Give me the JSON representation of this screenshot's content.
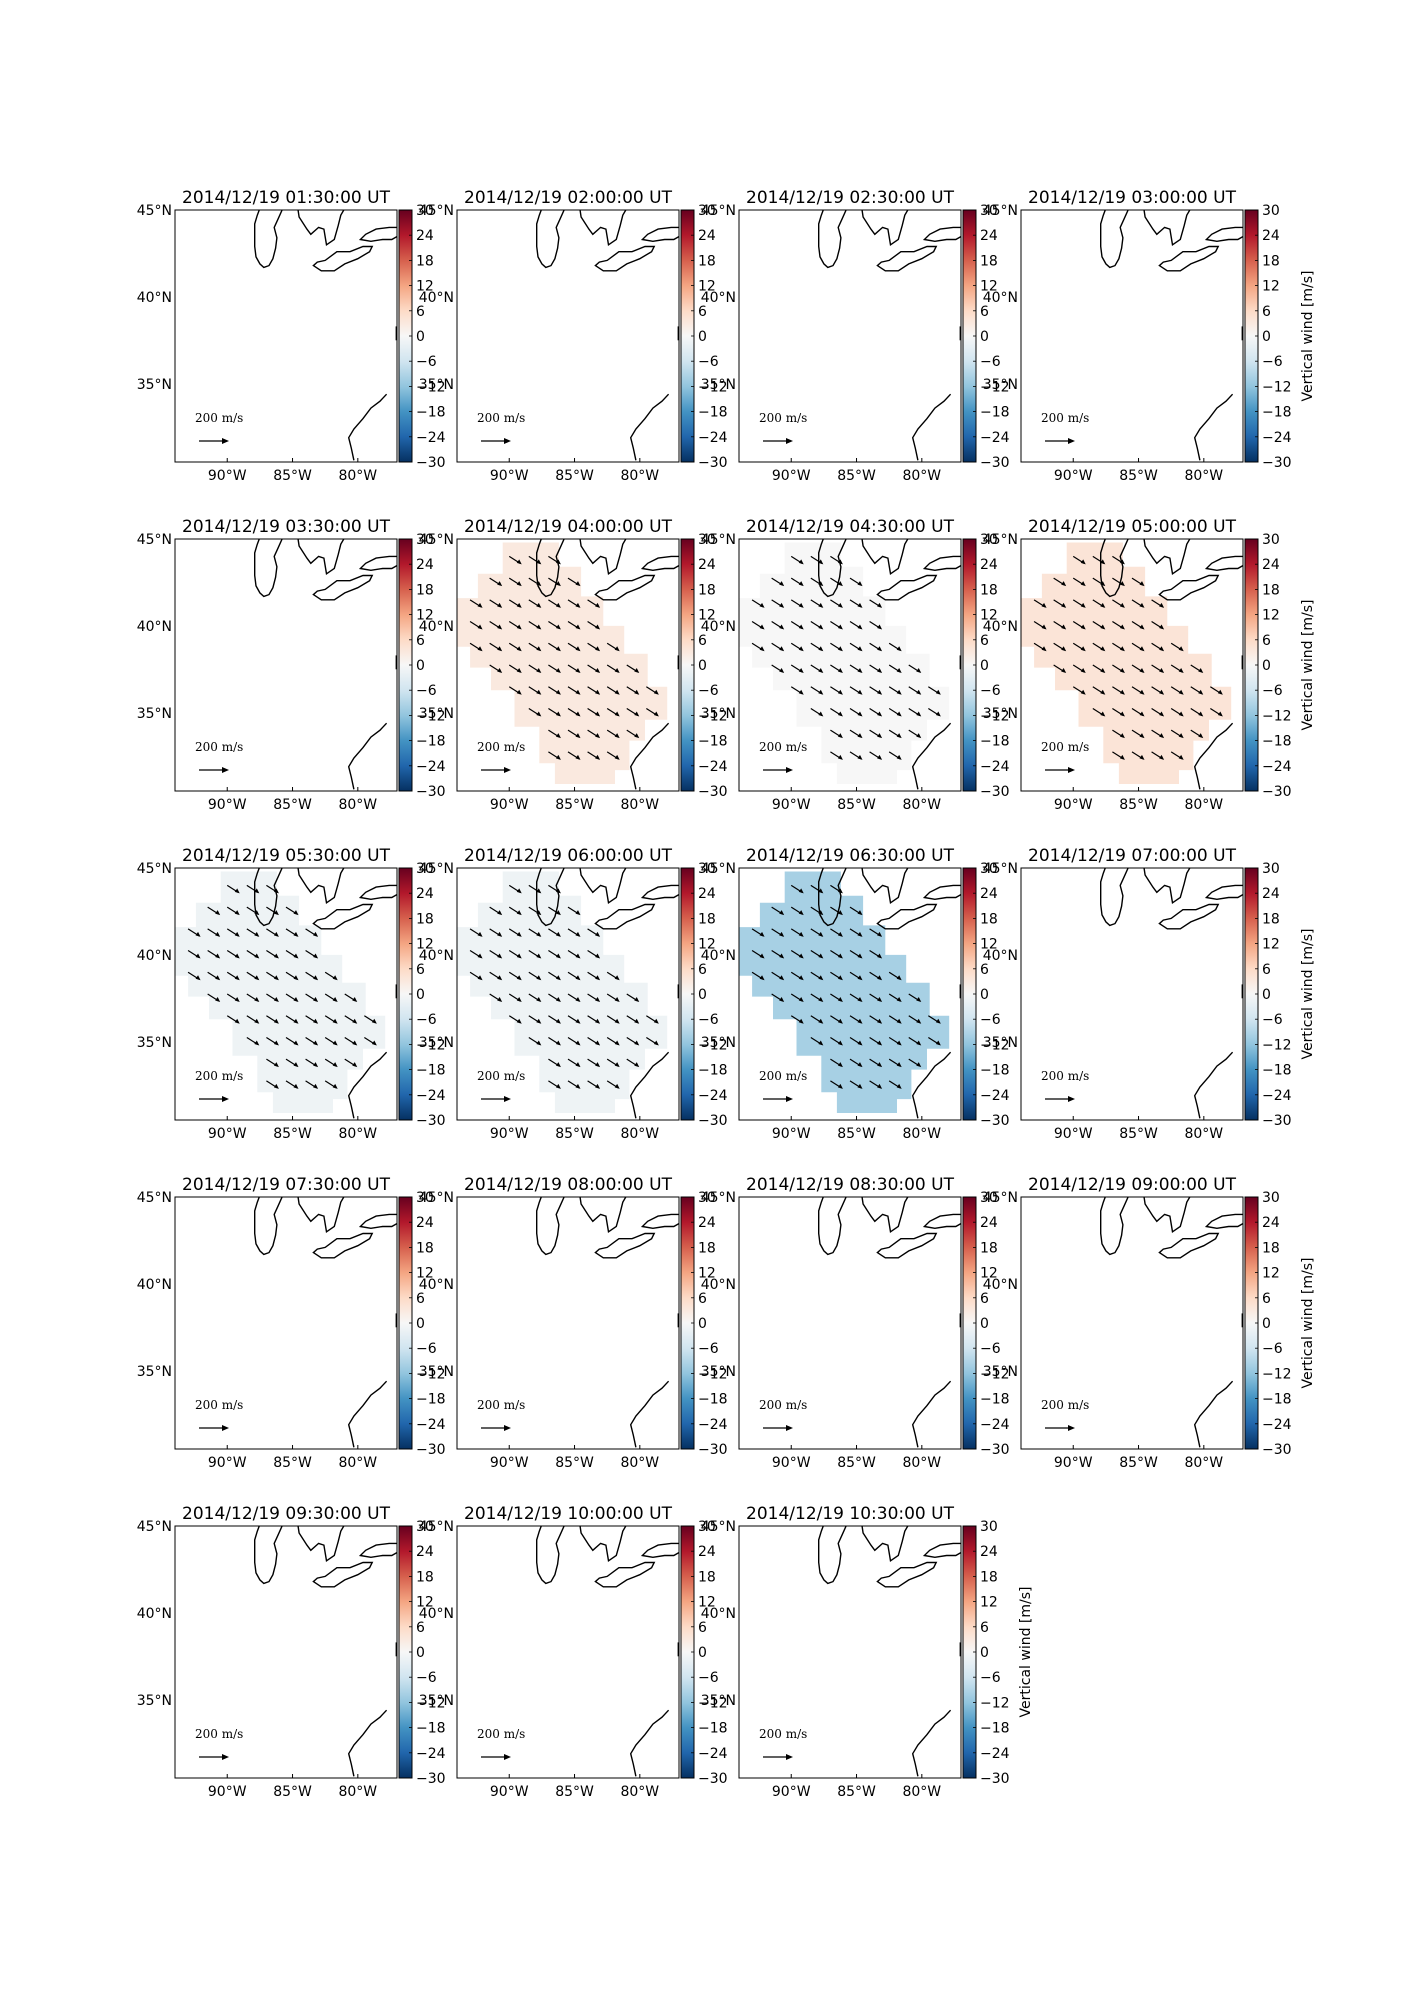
{
  "figure": {
    "colorbar_label": "Vertical wind [m/s]",
    "reference_arrow_label": "200",
    "reference_arrow_unit": "m/s",
    "lon_ticks": [
      "90°W",
      "85°W",
      "80°W"
    ],
    "lat_ticks": [
      "45°N",
      "40°N",
      "35°N"
    ],
    "colorbar_ticks": [
      "30",
      "24",
      "18",
      "12",
      "6",
      "0",
      "−6",
      "−12",
      "−18",
      "−24",
      "−30"
    ],
    "colors": {
      "red_max": "#67001f",
      "blue_min": "#053061",
      "center": "#f7f7f7"
    }
  },
  "chart_data": [
    {
      "type": "heatmap",
      "title": "2014/12/19 01:30:00 UT",
      "value": null,
      "xlim": [
        -94,
        -77
      ],
      "ylim": [
        30.5,
        45
      ],
      "colorbar_range": [
        -30,
        30
      ]
    },
    {
      "type": "heatmap",
      "title": "2014/12/19 02:00:00 UT",
      "value": null,
      "xlim": [
        -94,
        -77
      ],
      "ylim": [
        30.5,
        45
      ],
      "colorbar_range": [
        -30,
        30
      ]
    },
    {
      "type": "heatmap",
      "title": "2014/12/19 02:30:00 UT",
      "value": null,
      "xlim": [
        -94,
        -77
      ],
      "ylim": [
        30.5,
        45
      ],
      "colorbar_range": [
        -30,
        30
      ]
    },
    {
      "type": "heatmap",
      "title": "2014/12/19 03:00:00 UT",
      "value": null,
      "xlim": [
        -94,
        -77
      ],
      "ylim": [
        30.5,
        45
      ],
      "colorbar_range": [
        -30,
        30
      ]
    },
    {
      "type": "heatmap",
      "title": "2014/12/19 03:30:00 UT",
      "value": null,
      "xlim": [
        -94,
        -77
      ],
      "ylim": [
        30.5,
        45
      ],
      "colorbar_range": [
        -30,
        30
      ]
    },
    {
      "type": "heatmap",
      "title": "2014/12/19 04:00:00 UT",
      "value": 3,
      "xlim": [
        -94,
        -77
      ],
      "ylim": [
        30.5,
        45
      ],
      "colorbar_range": [
        -30,
        30
      ]
    },
    {
      "type": "heatmap",
      "title": "2014/12/19 04:30:00 UT",
      "value": 0,
      "xlim": [
        -94,
        -77
      ],
      "ylim": [
        30.5,
        45
      ],
      "colorbar_range": [
        -30,
        30
      ]
    },
    {
      "type": "heatmap",
      "title": "2014/12/19 05:00:00 UT",
      "value": 4,
      "xlim": [
        -94,
        -77
      ],
      "ylim": [
        30.5,
        45
      ],
      "colorbar_range": [
        -30,
        30
      ]
    },
    {
      "type": "heatmap",
      "title": "2014/12/19 05:30:00 UT",
      "value": -1.5,
      "xlim": [
        -94,
        -77
      ],
      "ylim": [
        30.5,
        45
      ],
      "colorbar_range": [
        -30,
        30
      ]
    },
    {
      "type": "heatmap",
      "title": "2014/12/19 06:00:00 UT",
      "value": -1.5,
      "xlim": [
        -94,
        -77
      ],
      "ylim": [
        30.5,
        45
      ],
      "colorbar_range": [
        -30,
        30
      ]
    },
    {
      "type": "heatmap",
      "title": "2014/12/19 06:30:00 UT",
      "value": -10,
      "xlim": [
        -94,
        -77
      ],
      "ylim": [
        30.5,
        45
      ],
      "colorbar_range": [
        -30,
        30
      ]
    },
    {
      "type": "heatmap",
      "title": "2014/12/19 07:00:00 UT",
      "value": null,
      "xlim": [
        -94,
        -77
      ],
      "ylim": [
        30.5,
        45
      ],
      "colorbar_range": [
        -30,
        30
      ]
    },
    {
      "type": "heatmap",
      "title": "2014/12/19 07:30:00 UT",
      "value": null,
      "xlim": [
        -94,
        -77
      ],
      "ylim": [
        30.5,
        45
      ],
      "colorbar_range": [
        -30,
        30
      ]
    },
    {
      "type": "heatmap",
      "title": "2014/12/19 08:00:00 UT",
      "value": null,
      "xlim": [
        -94,
        -77
      ],
      "ylim": [
        30.5,
        45
      ],
      "colorbar_range": [
        -30,
        30
      ]
    },
    {
      "type": "heatmap",
      "title": "2014/12/19 08:30:00 UT",
      "value": null,
      "xlim": [
        -94,
        -77
      ],
      "ylim": [
        30.5,
        45
      ],
      "colorbar_range": [
        -30,
        30
      ]
    },
    {
      "type": "heatmap",
      "title": "2014/12/19 09:00:00 UT",
      "value": null,
      "xlim": [
        -94,
        -77
      ],
      "ylim": [
        30.5,
        45
      ],
      "colorbar_range": [
        -30,
        30
      ]
    },
    {
      "type": "heatmap",
      "title": "2014/12/19 09:30:00 UT",
      "value": null,
      "xlim": [
        -94,
        -77
      ],
      "ylim": [
        30.5,
        45
      ],
      "colorbar_range": [
        -30,
        30
      ]
    },
    {
      "type": "heatmap",
      "title": "2014/12/19 10:00:00 UT",
      "value": null,
      "xlim": [
        -94,
        -77
      ],
      "ylim": [
        30.5,
        45
      ],
      "colorbar_range": [
        -30,
        30
      ]
    },
    {
      "type": "heatmap",
      "title": "2014/12/19 10:30:00 UT",
      "value": null,
      "xlim": [
        -94,
        -77
      ],
      "ylim": [
        30.5,
        45
      ],
      "colorbar_range": [
        -30,
        30
      ]
    }
  ]
}
